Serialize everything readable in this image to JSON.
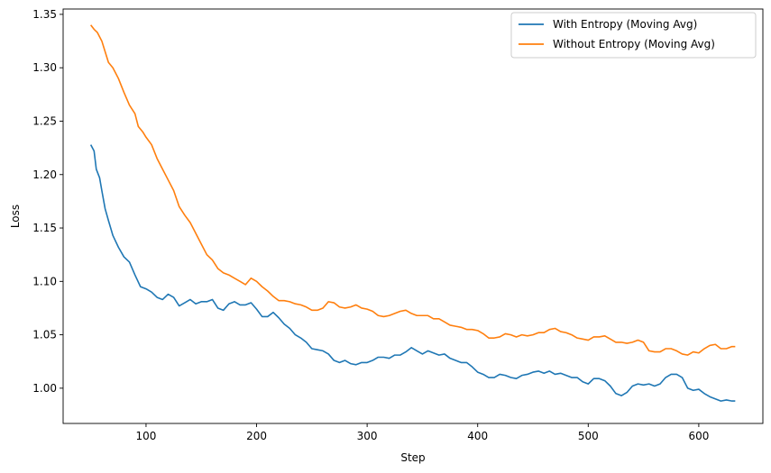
{
  "chart_data": {
    "type": "line",
    "xlabel": "Step",
    "ylabel": "Loss",
    "xlim": [
      25,
      658
    ],
    "ylim": [
      0.967,
      1.355
    ],
    "xticks": [
      100,
      200,
      300,
      400,
      500,
      600
    ],
    "yticks": [
      1.0,
      1.05,
      1.1,
      1.15,
      1.2,
      1.25,
      1.3,
      1.35
    ],
    "grid": false,
    "legend_position": "top-right",
    "series": [
      {
        "name": "With Entropy (Moving Avg)",
        "color": "#1f77b4",
        "points": [
          [
            50,
            1.228
          ],
          [
            53,
            1.222
          ],
          [
            55,
            1.205
          ],
          [
            58,
            1.197
          ],
          [
            60,
            1.185
          ],
          [
            63,
            1.168
          ],
          [
            66,
            1.157
          ],
          [
            70,
            1.143
          ],
          [
            75,
            1.132
          ],
          [
            80,
            1.123
          ],
          [
            85,
            1.118
          ],
          [
            90,
            1.106
          ],
          [
            95,
            1.095
          ],
          [
            100,
            1.093
          ],
          [
            105,
            1.09
          ],
          [
            110,
            1.085
          ],
          [
            115,
            1.083
          ],
          [
            120,
            1.088
          ],
          [
            125,
            1.085
          ],
          [
            130,
            1.077
          ],
          [
            135,
            1.08
          ],
          [
            140,
            1.083
          ],
          [
            145,
            1.079
          ],
          [
            150,
            1.081
          ],
          [
            155,
            1.081
          ],
          [
            160,
            1.083
          ],
          [
            165,
            1.075
          ],
          [
            170,
            1.073
          ],
          [
            175,
            1.079
          ],
          [
            180,
            1.081
          ],
          [
            185,
            1.078
          ],
          [
            190,
            1.078
          ],
          [
            195,
            1.08
          ],
          [
            200,
            1.074
          ],
          [
            205,
            1.067
          ],
          [
            210,
            1.067
          ],
          [
            215,
            1.071
          ],
          [
            220,
            1.066
          ],
          [
            225,
            1.06
          ],
          [
            230,
            1.056
          ],
          [
            235,
            1.05
          ],
          [
            240,
            1.047
          ],
          [
            245,
            1.043
          ],
          [
            250,
            1.037
          ],
          [
            255,
            1.036
          ],
          [
            260,
            1.035
          ],
          [
            265,
            1.032
          ],
          [
            270,
            1.026
          ],
          [
            275,
            1.024
          ],
          [
            280,
            1.026
          ],
          [
            285,
            1.023
          ],
          [
            290,
            1.022
          ],
          [
            295,
            1.024
          ],
          [
            300,
            1.024
          ],
          [
            305,
            1.026
          ],
          [
            310,
            1.029
          ],
          [
            315,
            1.029
          ],
          [
            320,
            1.028
          ],
          [
            325,
            1.031
          ],
          [
            330,
            1.031
          ],
          [
            335,
            1.034
          ],
          [
            340,
            1.038
          ],
          [
            345,
            1.035
          ],
          [
            350,
            1.032
          ],
          [
            355,
            1.035
          ],
          [
            360,
            1.033
          ],
          [
            365,
            1.031
          ],
          [
            370,
            1.032
          ],
          [
            375,
            1.028
          ],
          [
            380,
            1.026
          ],
          [
            385,
            1.024
          ],
          [
            390,
            1.024
          ],
          [
            395,
            1.02
          ],
          [
            400,
            1.015
          ],
          [
            405,
            1.013
          ],
          [
            410,
            1.01
          ],
          [
            415,
            1.01
          ],
          [
            420,
            1.013
          ],
          [
            425,
            1.012
          ],
          [
            430,
            1.01
          ],
          [
            435,
            1.009
          ],
          [
            440,
            1.012
          ],
          [
            445,
            1.013
          ],
          [
            450,
            1.015
          ],
          [
            455,
            1.016
          ],
          [
            460,
            1.014
          ],
          [
            465,
            1.016
          ],
          [
            470,
            1.013
          ],
          [
            475,
            1.014
          ],
          [
            480,
            1.012
          ],
          [
            485,
            1.01
          ],
          [
            490,
            1.01
          ],
          [
            495,
            1.006
          ],
          [
            500,
            1.004
          ],
          [
            505,
            1.009
          ],
          [
            510,
            1.009
          ],
          [
            515,
            1.007
          ],
          [
            520,
            1.002
          ],
          [
            525,
            0.995
          ],
          [
            530,
            0.993
          ],
          [
            535,
            0.996
          ],
          [
            540,
            1.002
          ],
          [
            545,
            1.004
          ],
          [
            550,
            1.003
          ],
          [
            555,
            1.004
          ],
          [
            560,
            1.002
          ],
          [
            565,
            1.004
          ],
          [
            570,
            1.01
          ],
          [
            575,
            1.013
          ],
          [
            580,
            1.013
          ],
          [
            585,
            1.01
          ],
          [
            590,
            1.0
          ],
          [
            595,
            0.998
          ],
          [
            600,
            0.999
          ],
          [
            605,
            0.995
          ],
          [
            610,
            0.992
          ],
          [
            615,
            0.99
          ],
          [
            620,
            0.988
          ],
          [
            625,
            0.989
          ],
          [
            630,
            0.988
          ],
          [
            633,
            0.988
          ]
        ]
      },
      {
        "name": "Without Entropy (Moving Avg)",
        "color": "#ff7f0e",
        "points": [
          [
            50,
            1.34
          ],
          [
            53,
            1.336
          ],
          [
            56,
            1.333
          ],
          [
            60,
            1.325
          ],
          [
            63,
            1.315
          ],
          [
            66,
            1.305
          ],
          [
            70,
            1.3
          ],
          [
            75,
            1.29
          ],
          [
            80,
            1.277
          ],
          [
            85,
            1.265
          ],
          [
            90,
            1.257
          ],
          [
            93,
            1.245
          ],
          [
            97,
            1.24
          ],
          [
            100,
            1.235
          ],
          [
            105,
            1.228
          ],
          [
            110,
            1.215
          ],
          [
            115,
            1.205
          ],
          [
            120,
            1.195
          ],
          [
            125,
            1.185
          ],
          [
            130,
            1.17
          ],
          [
            135,
            1.162
          ],
          [
            140,
            1.155
          ],
          [
            145,
            1.145
          ],
          [
            150,
            1.135
          ],
          [
            155,
            1.125
          ],
          [
            160,
            1.12
          ],
          [
            165,
            1.112
          ],
          [
            170,
            1.108
          ],
          [
            175,
            1.106
          ],
          [
            180,
            1.103
          ],
          [
            185,
            1.1
          ],
          [
            190,
            1.097
          ],
          [
            195,
            1.103
          ],
          [
            200,
            1.1
          ],
          [
            205,
            1.095
          ],
          [
            210,
            1.091
          ],
          [
            215,
            1.086
          ],
          [
            220,
            1.082
          ],
          [
            225,
            1.082
          ],
          [
            230,
            1.081
          ],
          [
            235,
            1.079
          ],
          [
            240,
            1.078
          ],
          [
            245,
            1.076
          ],
          [
            250,
            1.073
          ],
          [
            255,
            1.073
          ],
          [
            260,
            1.075
          ],
          [
            265,
            1.081
          ],
          [
            270,
            1.08
          ],
          [
            275,
            1.076
          ],
          [
            280,
            1.075
          ],
          [
            285,
            1.076
          ],
          [
            290,
            1.078
          ],
          [
            295,
            1.075
          ],
          [
            300,
            1.074
          ],
          [
            305,
            1.072
          ],
          [
            310,
            1.068
          ],
          [
            315,
            1.067
          ],
          [
            320,
            1.068
          ],
          [
            325,
            1.07
          ],
          [
            330,
            1.072
          ],
          [
            335,
            1.073
          ],
          [
            340,
            1.07
          ],
          [
            345,
            1.068
          ],
          [
            350,
            1.068
          ],
          [
            355,
            1.068
          ],
          [
            360,
            1.065
          ],
          [
            365,
            1.065
          ],
          [
            370,
            1.062
          ],
          [
            375,
            1.059
          ],
          [
            380,
            1.058
          ],
          [
            385,
            1.057
          ],
          [
            390,
            1.055
          ],
          [
            395,
            1.055
          ],
          [
            400,
            1.054
          ],
          [
            405,
            1.051
          ],
          [
            410,
            1.047
          ],
          [
            415,
            1.047
          ],
          [
            420,
            1.048
          ],
          [
            425,
            1.051
          ],
          [
            430,
            1.05
          ],
          [
            435,
            1.048
          ],
          [
            440,
            1.05
          ],
          [
            445,
            1.049
          ],
          [
            450,
            1.05
          ],
          [
            455,
            1.052
          ],
          [
            460,
            1.052
          ],
          [
            465,
            1.055
          ],
          [
            470,
            1.056
          ],
          [
            475,
            1.053
          ],
          [
            480,
            1.052
          ],
          [
            485,
            1.05
          ],
          [
            490,
            1.047
          ],
          [
            495,
            1.046
          ],
          [
            500,
            1.045
          ],
          [
            505,
            1.048
          ],
          [
            510,
            1.048
          ],
          [
            515,
            1.049
          ],
          [
            520,
            1.046
          ],
          [
            525,
            1.043
          ],
          [
            530,
            1.043
          ],
          [
            535,
            1.042
          ],
          [
            540,
            1.043
          ],
          [
            545,
            1.045
          ],
          [
            550,
            1.043
          ],
          [
            555,
            1.035
          ],
          [
            560,
            1.034
          ],
          [
            565,
            1.034
          ],
          [
            570,
            1.037
          ],
          [
            575,
            1.037
          ],
          [
            580,
            1.035
          ],
          [
            585,
            1.032
          ],
          [
            590,
            1.031
          ],
          [
            595,
            1.034
          ],
          [
            600,
            1.033
          ],
          [
            605,
            1.037
          ],
          [
            610,
            1.04
          ],
          [
            615,
            1.041
          ],
          [
            620,
            1.037
          ],
          [
            625,
            1.037
          ],
          [
            630,
            1.039
          ],
          [
            633,
            1.039
          ]
        ]
      }
    ]
  }
}
